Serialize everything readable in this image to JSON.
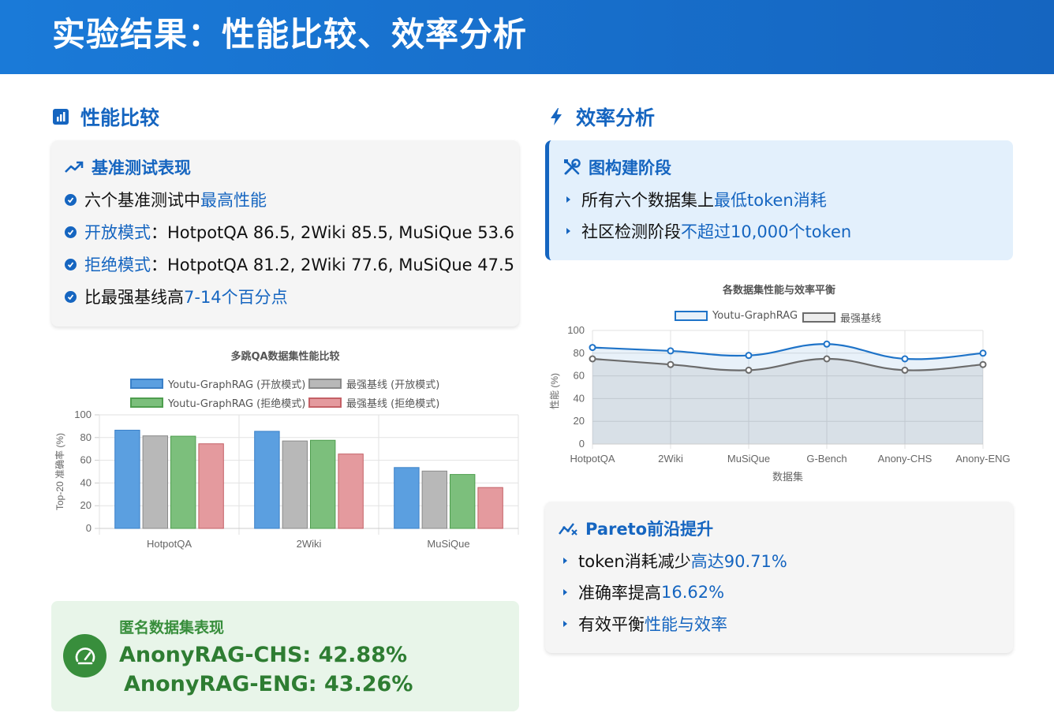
{
  "header": {
    "title": "实验结果：性能比较、效率分析"
  },
  "left": {
    "section_title": "性能比较",
    "benchmark": {
      "title": "基准测试表现",
      "items": [
        {
          "pre": "六个基准测试中",
          "hl": "最高性能",
          "post": ""
        },
        {
          "pre": "",
          "hl": "开放模式",
          "post": "：HotpotQA 86.5, 2Wiki 85.5, MuSiQue 53.6"
        },
        {
          "pre": "",
          "hl": "拒绝模式",
          "post": "：HotpotQA 81.2, 2Wiki 77.6, MuSiQue 47.5"
        },
        {
          "pre": "比最强基线高",
          "hl": "7-14个百分点",
          "post": ""
        }
      ]
    },
    "anon": {
      "title": "匿名数据集表现",
      "line1": "AnonyRAG-CHS: 42.88%",
      "line2": "AnonyRAG-ENG: 43.26%"
    }
  },
  "right": {
    "section_title": "效率分析",
    "graph_build": {
      "title": "图构建阶段",
      "items": [
        {
          "pre": "所有六个数据集上",
          "hl": "最低token消耗"
        },
        {
          "pre": "社区检测阶段",
          "hl": "不超过10,000个token"
        }
      ]
    },
    "pareto": {
      "title": "Pareto前沿提升",
      "items": [
        {
          "pre": "token消耗减少",
          "hl": "高达90.71%"
        },
        {
          "pre": "准确率提高",
          "hl": "16.62%"
        },
        {
          "pre": "有效平衡",
          "hl": "性能与效率"
        }
      ]
    }
  },
  "chart_data": [
    {
      "type": "bar",
      "title": "多跳QA数据集性能比较",
      "ylabel": "Top-20 准确率 (%)",
      "xlabel": "",
      "ylim": [
        0,
        100
      ],
      "yticks": [
        0,
        20,
        40,
        60,
        80,
        100
      ],
      "grid": true,
      "legend": "top",
      "categories": [
        "HotpotQA",
        "2Wiki",
        "MuSiQue"
      ],
      "series": [
        {
          "name": "Youtu-GraphRAG (开放模式)",
          "values": [
            86.5,
            85.5,
            53.6
          ],
          "fill": "#5b9fe0",
          "stroke": "#3a80c8"
        },
        {
          "name": "最强基线 (开放模式)",
          "values": [
            81.5,
            77.0,
            50.5
          ],
          "fill": "#b8b8b8",
          "stroke": "#8a8a8a"
        },
        {
          "name": "Youtu-GraphRAG (拒绝模式)",
          "values": [
            81.2,
            77.6,
            47.5
          ],
          "fill": "#7cbf7c",
          "stroke": "#4e9e4e"
        },
        {
          "name": "最强基线 (拒绝模式)",
          "values": [
            74.5,
            65.5,
            36.0
          ],
          "fill": "#e49a9e",
          "stroke": "#c46066"
        }
      ]
    },
    {
      "type": "area",
      "title": "各数据集性能与效率平衡",
      "ylabel": "性能 (%)",
      "xlabel": "数据集",
      "ylim": [
        0,
        100
      ],
      "yticks": [
        0,
        20,
        40,
        60,
        80,
        100
      ],
      "grid": true,
      "legend": "top",
      "categories": [
        "HotpotQA",
        "2Wiki",
        "MuSiQue",
        "G-Bench",
        "Anony-CHS",
        "Anony-ENG"
      ],
      "series": [
        {
          "name": "Youtu-GraphRAG",
          "values": [
            85,
            82,
            78,
            88,
            75,
            80
          ],
          "stroke": "#1e73c8",
          "fill": "rgba(30,115,200,0.10)"
        },
        {
          "name": "最强基线",
          "values": [
            75,
            70,
            65,
            75,
            65,
            70
          ],
          "stroke": "#6b6b6b",
          "fill": "rgba(110,110,110,0.12)"
        }
      ]
    }
  ]
}
